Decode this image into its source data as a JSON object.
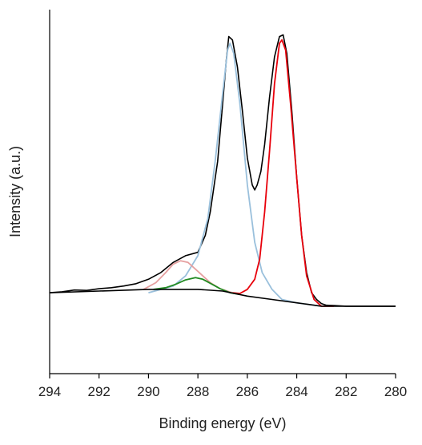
{
  "chart_data": {
    "type": "line",
    "title": "",
    "xlabel": "Binding energy (eV)",
    "ylabel": "Intensity (a.u.)",
    "x_reversed": true,
    "xlim": [
      280,
      294
    ],
    "ylim": [
      -0.08,
      1.0
    ],
    "xticks": [
      294,
      292,
      290,
      288,
      286,
      284,
      282,
      280
    ],
    "ytick_labels_shown": false,
    "grid": false,
    "legend": "none",
    "series": [
      {
        "color": "#000000",
        "points": [
          [
            294,
            0.16
          ],
          [
            293.5,
            0.163
          ],
          [
            293,
            0.168
          ],
          [
            292.5,
            0.167
          ],
          [
            292,
            0.172
          ],
          [
            291.5,
            0.175
          ],
          [
            291,
            0.18
          ],
          [
            290.5,
            0.187
          ],
          [
            290,
            0.2
          ],
          [
            289.5,
            0.22
          ],
          [
            289,
            0.25
          ],
          [
            288.5,
            0.27
          ],
          [
            288,
            0.28
          ],
          [
            287.7,
            0.33
          ],
          [
            287.5,
            0.4
          ],
          [
            287.2,
            0.55
          ],
          [
            287,
            0.72
          ],
          [
            286.85,
            0.85
          ],
          [
            286.75,
            0.92
          ],
          [
            286.6,
            0.91
          ],
          [
            286.4,
            0.83
          ],
          [
            286.2,
            0.7
          ],
          [
            286,
            0.56
          ],
          [
            285.8,
            0.48
          ],
          [
            285.7,
            0.465
          ],
          [
            285.6,
            0.48
          ],
          [
            285.45,
            0.52
          ],
          [
            285.3,
            0.6
          ],
          [
            285.1,
            0.74
          ],
          [
            284.9,
            0.86
          ],
          [
            284.7,
            0.92
          ],
          [
            284.55,
            0.925
          ],
          [
            284.4,
            0.87
          ],
          [
            284.2,
            0.7
          ],
          [
            284,
            0.5
          ],
          [
            283.8,
            0.33
          ],
          [
            283.6,
            0.22
          ],
          [
            283.4,
            0.16
          ],
          [
            283.2,
            0.14
          ],
          [
            283,
            0.128
          ],
          [
            282.8,
            0.123
          ],
          [
            282.5,
            0.122
          ],
          [
            282,
            0.12
          ],
          [
            281,
            0.12
          ],
          [
            280,
            0.12
          ]
        ]
      },
      {
        "color": "#9ac0dc",
        "points": [
          [
            290,
            0.16
          ],
          [
            289,
            0.18
          ],
          [
            288.5,
            0.21
          ],
          [
            288,
            0.27
          ],
          [
            287.6,
            0.38
          ],
          [
            287.3,
            0.55
          ],
          [
            287,
            0.75
          ],
          [
            286.8,
            0.88
          ],
          [
            286.7,
            0.9
          ],
          [
            286.55,
            0.87
          ],
          [
            286.3,
            0.72
          ],
          [
            286,
            0.48
          ],
          [
            285.7,
            0.31
          ],
          [
            285.4,
            0.22
          ],
          [
            285,
            0.17
          ],
          [
            284.6,
            0.14
          ],
          [
            284,
            0.13
          ],
          [
            283,
            0.12
          ]
        ]
      },
      {
        "color": "#e8000b",
        "points": [
          [
            286.6,
            0.16
          ],
          [
            286.3,
            0.158
          ],
          [
            286,
            0.17
          ],
          [
            285.7,
            0.2
          ],
          [
            285.5,
            0.26
          ],
          [
            285.3,
            0.4
          ],
          [
            285.1,
            0.58
          ],
          [
            284.9,
            0.78
          ],
          [
            284.7,
            0.9
          ],
          [
            284.6,
            0.91
          ],
          [
            284.45,
            0.88
          ],
          [
            284.25,
            0.72
          ],
          [
            284,
            0.5
          ],
          [
            283.8,
            0.33
          ],
          [
            283.6,
            0.21
          ],
          [
            283.3,
            0.14
          ],
          [
            283,
            0.12
          ],
          [
            282.5,
            0.12
          ]
        ]
      },
      {
        "color": "#e6a0a0",
        "points": [
          [
            290.2,
            0.17
          ],
          [
            289.7,
            0.19
          ],
          [
            289.3,
            0.22
          ],
          [
            289,
            0.245
          ],
          [
            288.7,
            0.255
          ],
          [
            288.4,
            0.25
          ],
          [
            288.1,
            0.23
          ],
          [
            287.8,
            0.21
          ],
          [
            287.5,
            0.19
          ],
          [
            287.1,
            0.172
          ],
          [
            286.6,
            0.16
          ]
        ]
      },
      {
        "color": "#228b22",
        "points": [
          [
            289.8,
            0.17
          ],
          [
            289.3,
            0.175
          ],
          [
            288.9,
            0.185
          ],
          [
            288.5,
            0.198
          ],
          [
            288.1,
            0.205
          ],
          [
            287.8,
            0.2
          ],
          [
            287.5,
            0.188
          ],
          [
            287.1,
            0.172
          ],
          [
            286.7,
            0.16
          ],
          [
            286.3,
            0.155
          ]
        ]
      },
      {
        "color": "#000000",
        "points": [
          [
            294,
            0.16
          ],
          [
            292,
            0.165
          ],
          [
            290,
            0.17
          ],
          [
            288,
            0.17
          ],
          [
            287,
            0.165
          ],
          [
            286,
            0.15
          ],
          [
            285,
            0.14
          ],
          [
            284,
            0.13
          ],
          [
            283,
            0.12
          ],
          [
            282,
            0.12
          ],
          [
            281,
            0.12
          ],
          [
            280,
            0.12
          ]
        ]
      }
    ]
  }
}
